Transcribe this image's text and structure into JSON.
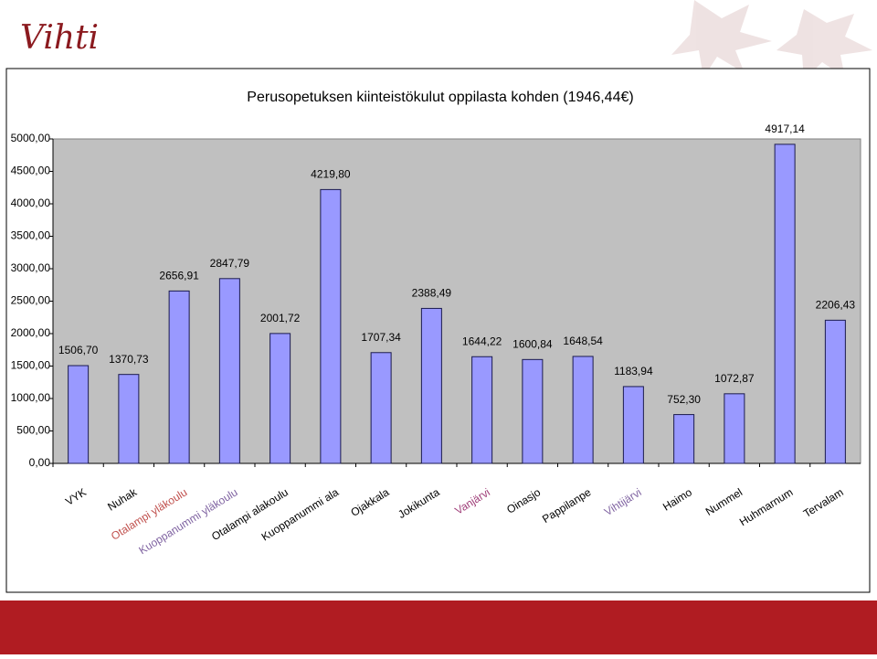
{
  "logo": "Vihti",
  "chart_data": {
    "type": "bar",
    "title": "Perusopetuksen kiinteistökulut oppilasta kohden (1946,44€)",
    "categories": [
      "VYK",
      "Nuhak",
      "Otalampi yläkoulu",
      "Kuoppanummi yläkoulu",
      "Otalampi alakoulu",
      "Kuoppanummi ala",
      "Ojakkala",
      "Jokikunta",
      "Vanjärvi",
      "Oinasjo",
      "Pappilanpe",
      "Vihtijärvi",
      "Haimo",
      "Nummel",
      "Huhmarnum",
      "Tervalam"
    ],
    "category_colors": [
      "#000000",
      "#000000",
      "#c0504d",
      "#8064a2",
      "#000000",
      "#000000",
      "#000000",
      "#000000",
      "#a0407a",
      "#000000",
      "#000000",
      "#8064a2",
      "#000000",
      "#000000",
      "#000000",
      "#000000"
    ],
    "values": [
      1506.7,
      1370.73,
      2656.91,
      2847.79,
      2001.72,
      4219.8,
      1707.34,
      2388.49,
      1644.22,
      1600.84,
      1648.54,
      1183.94,
      752.3,
      1072.87,
      4917.14,
      2206.43
    ],
    "value_labels": [
      "1506,70",
      "1370,73",
      "2656,91",
      "2847,79",
      "2001,72",
      "4219,80",
      "1707,34",
      "2388,49",
      "1644,22",
      "1600,84",
      "1648,54",
      "1183,94",
      "752,30",
      "1072,87",
      "4917,14",
      "2206,43"
    ],
    "color": "#9999ff",
    "plot_background": "#c0c0c0",
    "ylim": [
      0,
      5000
    ],
    "yticks": [
      {
        "value": 0,
        "label": "0,00"
      },
      {
        "value": 500,
        "label": "500,00"
      },
      {
        "value": 1000,
        "label": "1000,00"
      },
      {
        "value": 1500,
        "label": "1500,00"
      },
      {
        "value": 2000,
        "label": "2000,00"
      },
      {
        "value": 2500,
        "label": "2500,00"
      },
      {
        "value": 3000,
        "label": "3000,00"
      },
      {
        "value": 3500,
        "label": "3500,00"
      },
      {
        "value": 4000,
        "label": "4000,00"
      },
      {
        "value": 4500,
        "label": "4500,00"
      },
      {
        "value": 5000,
        "label": "5000,00"
      }
    ],
    "grid": false
  }
}
